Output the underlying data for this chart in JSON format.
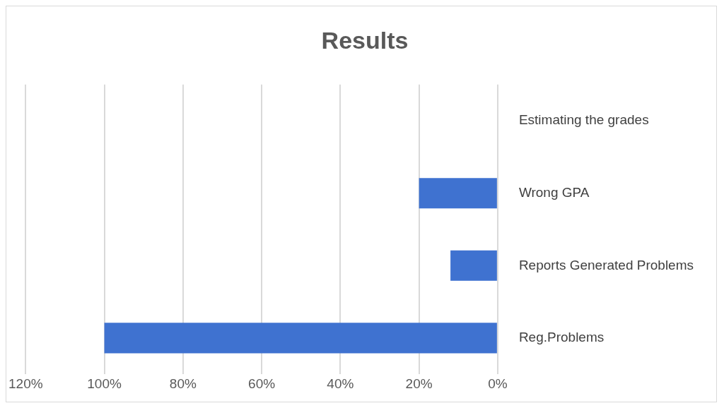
{
  "chart_data": {
    "type": "bar",
    "title": "Results",
    "orientation": "horizontal",
    "categories": [
      "Estimating the grades",
      "Wrong GPA",
      "Reports Generated Problems",
      "Reg.Problems"
    ],
    "values": [
      0,
      20,
      12,
      100
    ],
    "color": "#3f72d0",
    "xlim": [
      120,
      0
    ],
    "xticks": [
      {
        "value": 120,
        "label": "120%"
      },
      {
        "value": 100,
        "label": "100%"
      },
      {
        "value": 80,
        "label": "80%"
      },
      {
        "value": 60,
        "label": "60%"
      },
      {
        "value": 40,
        "label": "40%"
      },
      {
        "value": 20,
        "label": "20%"
      },
      {
        "value": 0,
        "label": "0%"
      }
    ],
    "grid": "x",
    "legend": false
  }
}
